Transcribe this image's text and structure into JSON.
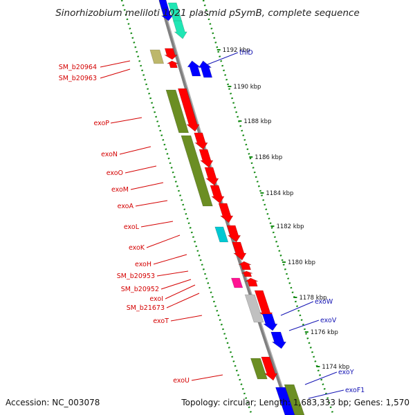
{
  "title": "Sinorhizobium meliloti 1021 plasmid pSymB, complete sequence",
  "footer": {
    "accession": "Accession: NC_003078",
    "summary": "Topology: circular; Length: 1,683,333 bp; Genes: 1,570"
  },
  "ticks": [
    "1192 kbp",
    "1190 kbp",
    "1188 kbp",
    "1186 kbp",
    "1184 kbp",
    "1182 kbp",
    "1180 kbp",
    "1178 kbp",
    "1176 kbp",
    "1174 kbp"
  ],
  "left_labels": [
    "SM_b20964",
    "SM_b20963",
    "exoP",
    "exoN",
    "exoO",
    "exoM",
    "exoA",
    "exoL",
    "exoK",
    "exoH",
    "SM_b20953",
    "SM_b20952",
    "exoI",
    "SM_b21673",
    "exoT",
    "exoU"
  ],
  "right_labels": [
    "thiD",
    "exoW",
    "exoV",
    "exoY",
    "exoF1"
  ],
  "colors": {
    "red": "#ff0000",
    "olive": "#6b8e23",
    "blue": "#0000ff",
    "cyan": "#00c8d2",
    "magenta": "#ff1493",
    "grey": "#c0c0c0",
    "tan": "#bdb76b",
    "teal": "#20e6b4",
    "label_red": "#d40000",
    "label_blue": "#1414b4",
    "tick_green": "#138a13"
  }
}
